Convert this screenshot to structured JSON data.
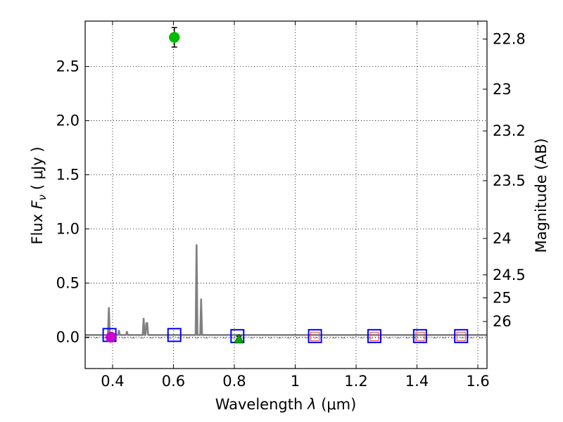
{
  "chart_data": {
    "type": "scatter",
    "xlabel": "Wavelength",
    "xlabel_symbol": "λ",
    "xlabel_unit": "(μm)",
    "ylabel": "Flux",
    "ylabel_symbol": "F",
    "ylabel_subscript": "ν",
    "ylabel_unit": "( μJy )",
    "y2label": "Magnitude (AB)",
    "xlim": [
      0.31,
      1.63
    ],
    "ylim": [
      -0.29,
      2.92
    ],
    "grid": true,
    "x_ticks": [
      {
        "value": 0.4,
        "label": "0.4"
      },
      {
        "value": 0.6,
        "label": "0.6"
      },
      {
        "value": 0.8,
        "label": "0.8"
      },
      {
        "value": 1.0,
        "label": "1"
      },
      {
        "value": 1.2,
        "label": "1.2"
      },
      {
        "value": 1.4,
        "label": "1.4"
      },
      {
        "value": 1.6,
        "label": "1.6"
      }
    ],
    "y_ticks": [
      {
        "value": 0.0,
        "label": "0.0"
      },
      {
        "value": 0.5,
        "label": "0.5"
      },
      {
        "value": 1.0,
        "label": "1.0"
      },
      {
        "value": 1.5,
        "label": "1.5"
      },
      {
        "value": 2.0,
        "label": "2.0"
      },
      {
        "value": 2.5,
        "label": "2.5"
      }
    ],
    "y2_ticks": [
      {
        "mag": 22.8,
        "label": "22.8"
      },
      {
        "mag": 23.0,
        "label": "23"
      },
      {
        "mag": 23.2,
        "label": "23.2"
      },
      {
        "mag": 23.5,
        "label": "23.5"
      },
      {
        "mag": 24.0,
        "label": "24"
      },
      {
        "mag": 24.5,
        "label": "24.5"
      },
      {
        "mag": 25.0,
        "label": "25"
      },
      {
        "mag": 26.0,
        "label": "26"
      }
    ],
    "model_spectrum": {
      "name": "model",
      "color": "#808080",
      "x": [
        0.31,
        0.385,
        0.388,
        0.391,
        0.394,
        0.41,
        0.418,
        0.421,
        0.424,
        0.44,
        0.444,
        0.447,
        0.45,
        0.495,
        0.499,
        0.502,
        0.505,
        0.508,
        0.511,
        0.514,
        0.517,
        0.52,
        0.67,
        0.673,
        0.676,
        0.679,
        0.682,
        0.685,
        0.688,
        0.691,
        0.694,
        0.697,
        0.8,
        0.9,
        1.0,
        1.2,
        1.4,
        1.63
      ],
      "y": [
        0.02,
        0.02,
        0.27,
        0.02,
        0.02,
        0.02,
        0.02,
        0.06,
        0.02,
        0.02,
        0.02,
        0.05,
        0.02,
        0.02,
        0.02,
        0.17,
        0.02,
        0.02,
        0.13,
        0.13,
        0.02,
        0.02,
        0.02,
        0.02,
        0.85,
        0.02,
        0.02,
        0.02,
        0.02,
        0.35,
        0.02,
        0.02,
        0.02,
        0.02,
        0.02,
        0.02,
        0.02,
        0.02
      ]
    },
    "observed_points": [
      {
        "x": 0.395,
        "y": 0.0,
        "err": 0.03,
        "color": "#cc00cc",
        "marker": "circle"
      },
      {
        "x": 0.603,
        "y": 2.77,
        "err": 0.09,
        "color": "#00bb00",
        "marker": "circle"
      },
      {
        "x": 0.815,
        "y": -0.01,
        "err": 0.02,
        "color": "#00aa00",
        "marker": "triangle"
      }
    ],
    "model_bands": {
      "color": "#0000ff",
      "marker": "square",
      "x": [
        0.39,
        0.603,
        0.81,
        1.065,
        1.26,
        1.41,
        1.545
      ],
      "y": [
        0.02,
        0.02,
        0.01,
        0.01,
        0.01,
        0.01,
        0.01
      ]
    },
    "upper_limit_bands": {
      "color": "#ff4040",
      "x": [
        1.065,
        1.26,
        1.41,
        1.545
      ],
      "y": [
        0.0,
        0.0,
        0.0,
        0.0
      ]
    },
    "zero_line": {
      "y": 0.0,
      "color": "#555555",
      "style": "dash-dot"
    }
  }
}
